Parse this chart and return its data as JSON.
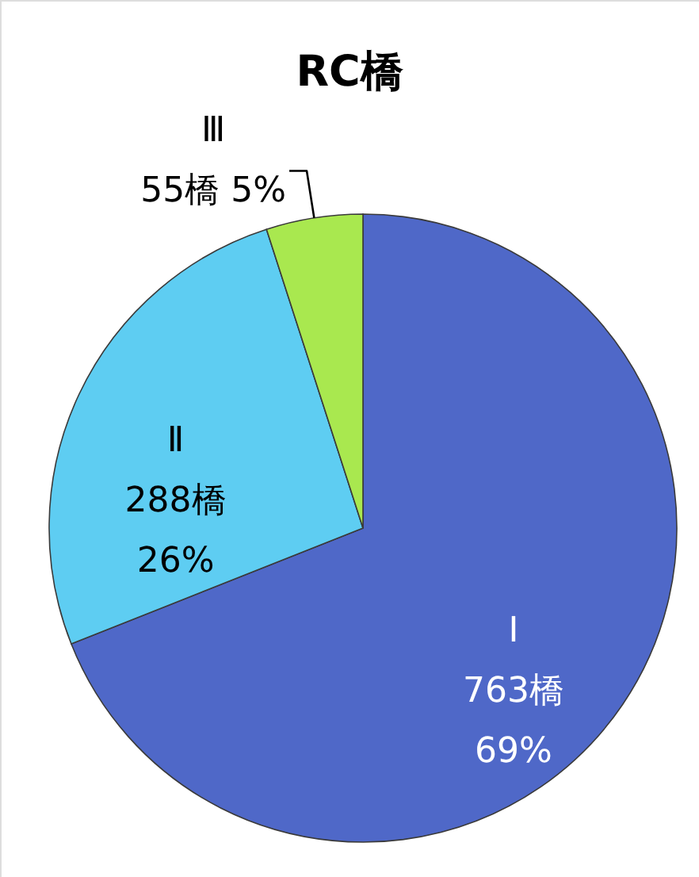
{
  "chart_data": {
    "type": "pie",
    "title": "RC橋",
    "categories": [
      "Ⅰ",
      "Ⅱ",
      "Ⅲ"
    ],
    "values": [
      763,
      288,
      55
    ],
    "value_labels": [
      "763橋\n69%",
      "288橋\n26%",
      "55橋 5%"
    ],
    "colors": [
      "#4f68c8",
      "#5ecdf2",
      "#a9e84f"
    ]
  }
}
